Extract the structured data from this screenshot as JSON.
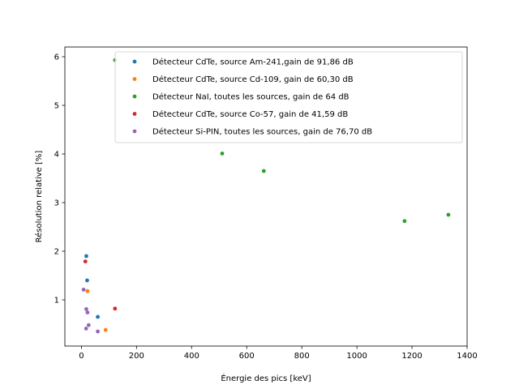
{
  "chart_data": {
    "type": "scatter",
    "title": "",
    "xlabel": "Énergie des pics [keV]",
    "ylabel": "Résolution relative [%]",
    "xlim": [
      -60,
      1400
    ],
    "ylim": [
      0.05,
      6.2
    ],
    "xticks": [
      0,
      200,
      400,
      600,
      800,
      1000,
      1200,
      1400
    ],
    "yticks": [
      1,
      2,
      3,
      4,
      5,
      6
    ],
    "grid": false,
    "legend_position": "top-right",
    "series": [
      {
        "name": "Détecteur CdTe, source Am-241,gain de 91,86 dB",
        "color": "#1f77b4",
        "points": [
          [
            17.8,
            1.9
          ],
          [
            20.8,
            1.4
          ],
          [
            59.5,
            0.65
          ]
        ]
      },
      {
        "name": "Détecteur CdTe, source Cd-109, gain de 60,30 dB",
        "color": "#ff7f0e",
        "points": [
          [
            22.1,
            1.18
          ],
          [
            88.0,
            0.38
          ]
        ]
      },
      {
        "name": "Détecteur NaI, toutes les sources, gain de 64 dB",
        "color": "#2ca02c",
        "points": [
          [
            122,
            5.93
          ],
          [
            511,
            4.01
          ],
          [
            662,
            3.65
          ],
          [
            1173,
            2.62
          ],
          [
            1332,
            2.75
          ]
        ]
      },
      {
        "name": "Détecteur CdTe, source Co-57, gain de 41,59 dB",
        "color": "#d62728",
        "points": [
          [
            14.4,
            1.79
          ],
          [
            122,
            0.82
          ]
        ]
      },
      {
        "name": "Détecteur Si-PIN, toutes les sources, gain de 76,70 dB",
        "color": "#9467bd",
        "points": [
          [
            8.0,
            1.21
          ],
          [
            17.8,
            0.81
          ],
          [
            22.1,
            0.74
          ],
          [
            26.3,
            0.48
          ],
          [
            17.0,
            0.41
          ],
          [
            59.5,
            0.35
          ]
        ]
      }
    ]
  }
}
